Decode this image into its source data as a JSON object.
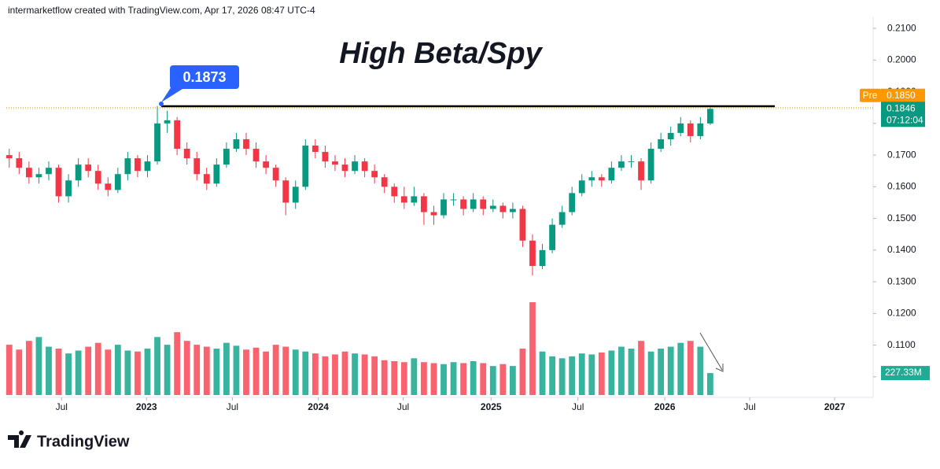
{
  "header": "intermarketflow created with TradingView.com, Apr 17, 2026 08:47 UTC-4",
  "footer_brand": "TradingView",
  "chart_data": {
    "type": "candlestick",
    "title": "High Beta/Spy",
    "annotation": 0.1873,
    "up_color": "#089981",
    "down_color": "#f23645",
    "volume_up_color": "#22ab94",
    "volume_down_color": "#f7525f",
    "xlim": [
      -0.3,
      87.5
    ],
    "xticks": [
      {
        "value": 5.3,
        "label": "Jul"
      },
      {
        "value": 13.9,
        "label": "2023"
      },
      {
        "value": 22.6,
        "label": "Jul"
      },
      {
        "value": 31.3,
        "label": "2024"
      },
      {
        "value": 39.9,
        "label": "Jul"
      },
      {
        "value": 48.8,
        "label": "2025"
      },
      {
        "value": 57.6,
        "label": "Jul"
      },
      {
        "value": 66.4,
        "label": "2026"
      },
      {
        "value": 75.0,
        "label": "Jul"
      },
      {
        "value": 83.6,
        "label": "2027"
      }
    ],
    "ylim": [
      0.0935,
      0.2135
    ],
    "yticks": [
      {
        "value": 0.21,
        "label": "0.2100"
      },
      {
        "value": 0.2,
        "label": "0.2000"
      },
      {
        "value": 0.19,
        "label": "0.1900"
      },
      {
        "value": 0.18,
        "label": "0.1800"
      },
      {
        "value": 0.17,
        "label": "0.1700"
      },
      {
        "value": 0.16,
        "label": "0.1600"
      },
      {
        "value": 0.15,
        "label": "0.1500"
      },
      {
        "value": 0.14,
        "label": "0.1400"
      },
      {
        "value": 0.13,
        "label": "0.1300"
      },
      {
        "value": 0.12,
        "label": "0.1200"
      },
      {
        "value": 0.11,
        "label": "0.1100"
      },
      {
        "value": 0.1,
        "label": "0.1000"
      }
    ],
    "candles": [
      [
        0.17,
        0.172,
        0.166,
        0.169
      ],
      [
        0.169,
        0.171,
        0.164,
        0.166
      ],
      [
        0.166,
        0.168,
        0.161,
        0.163
      ],
      [
        0.163,
        0.166,
        0.161,
        0.164
      ],
      [
        0.164,
        0.168,
        0.162,
        0.166
      ],
      [
        0.166,
        0.167,
        0.155,
        0.157
      ],
      [
        0.157,
        0.164,
        0.155,
        0.162
      ],
      [
        0.162,
        0.169,
        0.16,
        0.167
      ],
      [
        0.167,
        0.169,
        0.163,
        0.165
      ],
      [
        0.165,
        0.167,
        0.159,
        0.161
      ],
      [
        0.161,
        0.163,
        0.157,
        0.159
      ],
      [
        0.159,
        0.166,
        0.158,
        0.164
      ],
      [
        0.164,
        0.171,
        0.162,
        0.169
      ],
      [
        0.169,
        0.17,
        0.163,
        0.165
      ],
      [
        0.165,
        0.17,
        0.163,
        0.168
      ],
      [
        0.168,
        0.1855,
        0.167,
        0.18
      ],
      [
        0.18,
        0.184,
        0.177,
        0.181
      ],
      [
        0.181,
        0.182,
        0.17,
        0.172
      ],
      [
        0.172,
        0.174,
        0.167,
        0.169
      ],
      [
        0.169,
        0.171,
        0.162,
        0.164
      ],
      [
        0.164,
        0.166,
        0.159,
        0.161
      ],
      [
        0.161,
        0.169,
        0.16,
        0.167
      ],
      [
        0.167,
        0.174,
        0.166,
        0.172
      ],
      [
        0.172,
        0.177,
        0.171,
        0.175
      ],
      [
        0.175,
        0.177,
        0.17,
        0.172
      ],
      [
        0.172,
        0.174,
        0.166,
        0.168
      ],
      [
        0.168,
        0.17,
        0.164,
        0.166
      ],
      [
        0.166,
        0.167,
        0.16,
        0.162
      ],
      [
        0.162,
        0.163,
        0.151,
        0.155
      ],
      [
        0.155,
        0.162,
        0.153,
        0.16
      ],
      [
        0.16,
        0.175,
        0.159,
        0.173
      ],
      [
        0.173,
        0.175,
        0.169,
        0.171
      ],
      [
        0.171,
        0.173,
        0.166,
        0.168
      ],
      [
        0.168,
        0.17,
        0.165,
        0.167
      ],
      [
        0.167,
        0.169,
        0.163,
        0.165
      ],
      [
        0.165,
        0.17,
        0.164,
        0.168
      ],
      [
        0.168,
        0.169,
        0.163,
        0.165
      ],
      [
        0.165,
        0.167,
        0.161,
        0.163
      ],
      [
        0.163,
        0.164,
        0.158,
        0.16
      ],
      [
        0.16,
        0.161,
        0.155,
        0.157
      ],
      [
        0.157,
        0.16,
        0.153,
        0.155
      ],
      [
        0.155,
        0.16,
        0.154,
        0.157
      ],
      [
        0.157,
        0.158,
        0.148,
        0.152
      ],
      [
        0.152,
        0.154,
        0.148,
        0.151
      ],
      [
        0.151,
        0.158,
        0.15,
        0.156
      ],
      [
        0.156,
        0.158,
        0.154,
        0.156
      ],
      [
        0.156,
        0.157,
        0.151,
        0.153
      ],
      [
        0.153,
        0.158,
        0.152,
        0.156
      ],
      [
        0.156,
        0.157,
        0.151,
        0.153
      ],
      [
        0.153,
        0.156,
        0.152,
        0.154
      ],
      [
        0.154,
        0.155,
        0.15,
        0.152
      ],
      [
        0.152,
        0.155,
        0.15,
        0.153
      ],
      [
        0.153,
        0.154,
        0.141,
        0.143
      ],
      [
        0.143,
        0.145,
        0.132,
        0.135
      ],
      [
        0.135,
        0.142,
        0.134,
        0.14
      ],
      [
        0.14,
        0.15,
        0.139,
        0.148
      ],
      [
        0.148,
        0.154,
        0.147,
        0.152
      ],
      [
        0.152,
        0.16,
        0.151,
        0.158
      ],
      [
        0.158,
        0.164,
        0.157,
        0.162
      ],
      [
        0.162,
        0.165,
        0.16,
        0.163
      ],
      [
        0.163,
        0.164,
        0.16,
        0.162
      ],
      [
        0.162,
        0.168,
        0.161,
        0.166
      ],
      [
        0.166,
        0.17,
        0.165,
        0.168
      ],
      [
        0.168,
        0.17,
        0.166,
        0.168
      ],
      [
        0.168,
        0.169,
        0.159,
        0.162
      ],
      [
        0.162,
        0.174,
        0.161,
        0.172
      ],
      [
        0.172,
        0.177,
        0.171,
        0.175
      ],
      [
        0.175,
        0.179,
        0.173,
        0.177
      ],
      [
        0.177,
        0.182,
        0.176,
        0.18
      ],
      [
        0.18,
        0.181,
        0.174,
        0.176
      ],
      [
        0.176,
        0.182,
        0.175,
        0.18
      ],
      [
        0.18,
        0.1851,
        0.1795,
        0.1846
      ]
    ],
    "close_label": "0.1846",
    "countdown": "07:12:04",
    "pre_market": {
      "label": "Pre",
      "price": {
        "value": 0.185,
        "label": "0.1850"
      }
    },
    "volume_ylim": [
      0,
      1400
    ],
    "volume": {
      "values": [
        520,
        470,
        560,
        600,
        500,
        480,
        430,
        460,
        500,
        540,
        470,
        520,
        460,
        450,
        480,
        600,
        520,
        650,
        560,
        520,
        500,
        480,
        540,
        510,
        470,
        490,
        450,
        520,
        500,
        470,
        450,
        430,
        400,
        420,
        450,
        430,
        420,
        400,
        360,
        350,
        340,
        380,
        340,
        330,
        320,
        340,
        330,
        350,
        330,
        300,
        320,
        300,
        480,
        960,
        450,
        400,
        380,
        400,
        430,
        420,
        440,
        460,
        500,
        480,
        560,
        450,
        480,
        500,
        540,
        560,
        500,
        227.33
      ],
      "value_labels": [
        null,
        null,
        null,
        null,
        null,
        null,
        null,
        null,
        null,
        null,
        null,
        null,
        null,
        null,
        null,
        null,
        null,
        null,
        null,
        null,
        null,
        null,
        null,
        null,
        null,
        null,
        null,
        null,
        null,
        null,
        null,
        null,
        null,
        null,
        null,
        null,
        null,
        null,
        null,
        null,
        null,
        null,
        null,
        null,
        null,
        null,
        null,
        null,
        null,
        null,
        null,
        null,
        null,
        null,
        null,
        null,
        null,
        null,
        null,
        null,
        null,
        null,
        null,
        null,
        null,
        null,
        null,
        null,
        null,
        null,
        null,
        "227.33M"
      ]
    }
  }
}
